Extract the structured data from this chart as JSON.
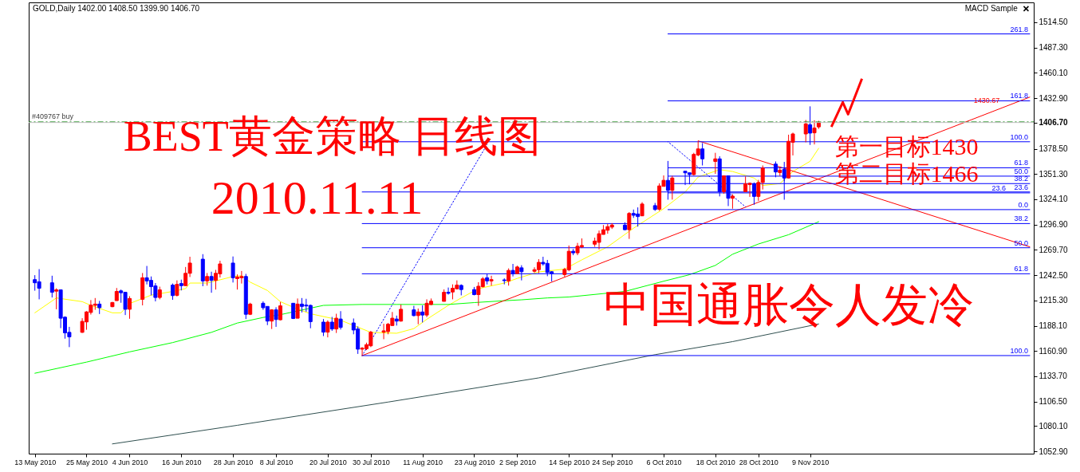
{
  "chart_data": {
    "type": "candlestick",
    "title": "BEST黄金策略 日线图",
    "subtitle": "2010.11.11",
    "annotations": [
      "GOLD,Daily 1402.00 1408.50 1399.90 1406.70",
      "MACD Sample",
      "第一目标1430",
      "第二目标1466",
      "中国通胀令人发冷",
      {
        "text": "1430.67",
        "x": "2010-12-20",
        "y": 1430.67
      }
    ],
    "x": [
      "2010-05-13",
      "2010-05-14",
      "2010-05-17",
      "2010-05-18",
      "2010-05-19",
      "2010-05-20",
      "2010-05-21",
      "2010-05-24",
      "2010-05-25",
      "2010-05-26",
      "2010-05-27",
      "2010-05-28",
      "2010-05-31",
      "2010-06-01",
      "2010-06-02",
      "2010-06-03",
      "2010-06-04",
      "2010-06-07",
      "2010-06-08",
      "2010-06-09",
      "2010-06-10",
      "2010-06-11",
      "2010-06-14",
      "2010-06-15",
      "2010-06-16",
      "2010-06-17",
      "2010-06-18",
      "2010-06-21",
      "2010-06-22",
      "2010-06-23",
      "2010-06-24",
      "2010-06-25",
      "2010-06-28",
      "2010-06-29",
      "2010-06-30",
      "2010-07-01",
      "2010-07-02",
      "2010-07-05",
      "2010-07-06",
      "2010-07-07",
      "2010-07-08",
      "2010-07-09",
      "2010-07-12",
      "2010-07-13",
      "2010-07-14",
      "2010-07-15",
      "2010-07-16",
      "2010-07-19",
      "2010-07-20",
      "2010-07-21",
      "2010-07-22",
      "2010-07-23",
      "2010-07-26",
      "2010-07-27",
      "2010-07-28",
      "2010-07-29",
      "2010-07-30",
      "2010-08-02",
      "2010-08-03",
      "2010-08-04",
      "2010-08-05",
      "2010-08-06",
      "2010-08-09",
      "2010-08-10",
      "2010-08-11",
      "2010-08-12",
      "2010-08-13",
      "2010-08-16",
      "2010-08-17",
      "2010-08-18",
      "2010-08-19",
      "2010-08-20",
      "2010-08-23",
      "2010-08-24",
      "2010-08-25",
      "2010-08-26",
      "2010-08-27",
      "2010-08-30",
      "2010-08-31",
      "2010-09-01",
      "2010-09-02",
      "2010-09-03",
      "2010-09-06",
      "2010-09-07",
      "2010-09-08",
      "2010-09-09",
      "2010-09-10",
      "2010-09-13",
      "2010-09-14",
      "2010-09-15",
      "2010-09-16",
      "2010-09-17",
      "2010-09-20",
      "2010-09-21",
      "2010-09-22",
      "2010-09-23",
      "2010-09-24",
      "2010-09-27",
      "2010-09-28",
      "2010-09-29",
      "2010-09-30",
      "2010-10-01",
      "2010-10-04",
      "2010-10-05",
      "2010-10-06",
      "2010-10-07",
      "2010-10-08",
      "2010-10-11",
      "2010-10-12",
      "2010-10-13",
      "2010-10-14",
      "2010-10-15",
      "2010-10-18",
      "2010-10-19",
      "2010-10-20",
      "2010-10-21",
      "2010-10-22",
      "2010-10-25",
      "2010-10-26",
      "2010-10-27",
      "2010-10-28",
      "2010-10-29",
      "2010-11-01",
      "2010-11-02",
      "2010-11-03",
      "2010-11-04",
      "2010-11-05",
      "2010-11-08",
      "2010-11-09",
      "2010-11-10",
      "2010-11-11"
    ],
    "ohlc": [
      [
        1237.7,
        1242.5,
        1225.8,
        1234.3
      ],
      [
        1235.4,
        1249.0,
        1216.5,
        1228.4
      ],
      [
        1234.3,
        1241.9,
        1218.5,
        1224.1
      ],
      [
        1225.3,
        1228.4,
        1205.8,
        1226.7
      ],
      [
        1226.7,
        1226.7,
        1185.5,
        1196.2
      ],
      [
        1197.3,
        1198.2,
        1174.2,
        1180.4
      ],
      [
        1181.0,
        1186.9,
        1165.1,
        1176.1
      ],
      [
        1181.0,
        1196.2,
        1180.4,
        1192.8
      ],
      [
        1192.2,
        1203.8,
        1183.8,
        1203.0
      ],
      [
        1202.4,
        1215.7,
        1200.1,
        1210.3
      ],
      [
        1210.0,
        1217.9,
        1205.2,
        1211.4
      ],
      [
        1211.4,
        1214.8,
        1200.7,
        1207.5
      ],
      [
        1208.6,
        1213.7,
        1208.0,
        1213.1
      ],
      [
        1215.1,
        1228.7,
        1215.1,
        1225.0
      ],
      [
        1225.6,
        1227.0,
        1212.8,
        1223.6
      ],
      [
        1224.1,
        1224.1,
        1199.6,
        1205.8
      ],
      [
        1205.8,
        1219.9,
        1195.6,
        1217.4
      ],
      [
        1216.5,
        1244.8,
        1210.0,
        1239.7
      ],
      [
        1239.7,
        1252.4,
        1232.6,
        1236.3
      ],
      [
        1236.9,
        1241.1,
        1220.8,
        1230.1
      ],
      [
        1230.9,
        1234.0,
        1214.3,
        1218.5
      ],
      [
        1218.5,
        1230.1,
        1216.5,
        1226.7
      ],
      [
        1231.8,
        1233.5,
        1216.0,
        1220.5
      ],
      [
        1220.8,
        1236.9,
        1219.6,
        1232.6
      ],
      [
        1233.5,
        1237.7,
        1226.1,
        1231.2
      ],
      [
        1231.2,
        1251.3,
        1231.2,
        1244.5
      ],
      [
        1244.5,
        1262.3,
        1240.5,
        1255.5
      ],
      [
        1259.7,
        1265.1,
        1230.6,
        1236.3
      ],
      [
        1236.3,
        1244.8,
        1231.2,
        1241.1
      ],
      [
        1241.1,
        1246.2,
        1223.6,
        1236.9
      ],
      [
        1236.9,
        1248.2,
        1227.0,
        1244.5
      ],
      [
        1243.9,
        1258.0,
        1240.0,
        1254.6
      ],
      [
        1255.5,
        1262.6,
        1234.6,
        1239.7
      ],
      [
        1238.8,
        1243.3,
        1227.0,
        1240.5
      ],
      [
        1239.7,
        1247.0,
        1233.5,
        1241.1
      ],
      [
        1241.1,
        1243.9,
        1195.3,
        1200.4
      ],
      [
        1200.4,
        1212.8,
        1199.6,
        1211.4
      ],
      [
        1212.3,
        1214.3,
        1205.2,
        1207.5
      ],
      [
        1208.9,
        1208.9,
        1188.8,
        1193.1
      ],
      [
        1193.1,
        1205.8,
        1184.6,
        1205.2
      ],
      [
        1205.2,
        1208.0,
        1186.9,
        1194.8
      ],
      [
        1194.5,
        1213.7,
        1193.9,
        1209.5
      ],
      [
        1212.3,
        1212.3,
        1195.3,
        1195.9
      ],
      [
        1196.2,
        1217.4,
        1196.2,
        1211.4
      ],
      [
        1211.4,
        1217.9,
        1202.4,
        1208.9
      ],
      [
        1210.3,
        1217.1,
        1203.2,
        1209.4
      ],
      [
        1210.0,
        1210.9,
        1185.4,
        1192.5
      ],
      [
        1192.0,
        1195.3,
        1177.0,
        1181.2
      ],
      [
        1181.2,
        1193.9,
        1175.6,
        1192.0
      ],
      [
        1192.0,
        1197.6,
        1182.6,
        1184.6
      ],
      [
        1184.6,
        1201.0,
        1180.3,
        1196.2
      ],
      [
        1195.3,
        1203.8,
        1184.0,
        1186.3
      ],
      [
        1191.1,
        1195.9,
        1178.9,
        1183.5
      ],
      [
        1184.6,
        1187.4,
        1157.8,
        1162.9
      ],
      [
        1162.9,
        1165.1,
        1155.8,
        1164.0
      ],
      [
        1163.4,
        1169.9,
        1162.0,
        1167.7
      ],
      [
        1166.5,
        1182.6,
        1165.1,
        1181.2
      ],
      [
        1181.2,
        1190.2,
        1173.6,
        1182.6
      ],
      [
        1181.8,
        1191.1,
        1178.9,
        1189.7
      ],
      [
        1188.3,
        1202.9,
        1188.3,
        1196.2
      ],
      [
        1195.3,
        1199.0,
        1188.3,
        1193.1
      ],
      [
        1193.1,
        1210.9,
        1192.5,
        1205.8
      ],
      [
        1205.2,
        1209.5,
        1198.2,
        1199.0
      ],
      [
        1199.0,
        1206.6,
        1189.7,
        1202.9
      ],
      [
        1202.9,
        1210.0,
        1191.7,
        1199.6
      ],
      [
        1199.6,
        1216.5,
        1197.3,
        1212.3
      ],
      [
        1210.9,
        1217.4,
        1210.3,
        1214.5
      ],
      [
        1214.3,
        1227.2,
        1214.3,
        1224.1
      ],
      [
        1224.1,
        1229.2,
        1221.6,
        1223.0
      ],
      [
        1224.4,
        1232.6,
        1216.5,
        1228.4
      ],
      [
        1227.8,
        1236.9,
        1227.2,
        1231.8
      ],
      [
        1231.5,
        1232.6,
        1220.8,
        1227.0
      ],
      [
        1227.0,
        1229.8,
        1220.8,
        1221.6
      ],
      [
        1221.6,
        1234.9,
        1209.5,
        1230.6
      ],
      [
        1230.1,
        1240.5,
        1229.2,
        1238.5
      ],
      [
        1239.7,
        1243.9,
        1232.6,
        1236.3
      ],
      [
        1236.3,
        1241.9,
        1231.2,
        1237.7
      ],
      [
        1237.4,
        1239.1,
        1232.6,
        1236.6
      ],
      [
        1236.3,
        1249.8,
        1231.2,
        1247.6
      ],
      [
        1247.6,
        1254.6,
        1241.1,
        1243.9
      ],
      [
        1244.2,
        1252.7,
        1243.9,
        1251.3
      ],
      [
        1250.4,
        1253.2,
        1236.9,
        1246.2
      ],
      [
        1246.7,
        1251.0,
        1245.3,
        1248.4
      ],
      [
        1248.4,
        1259.7,
        1244.7,
        1256.3
      ],
      [
        1256.3,
        1262.3,
        1252.7,
        1254.6
      ],
      [
        1255.2,
        1258.9,
        1241.4,
        1245.3
      ],
      [
        1246.2,
        1246.7,
        1235.7,
        1243.9
      ],
      [
        1243.1,
        1250.4,
        1240.5,
        1248.7
      ],
      [
        1248.3,
        1274.4,
        1246.7,
        1268.2
      ],
      [
        1268.2,
        1270.7,
        1264.0,
        1266.5
      ],
      [
        1266.5,
        1277.2,
        1264.0,
        1273.6
      ],
      [
        1273.0,
        1282.0,
        1271.6,
        1274.4
      ],
      [
        1275.8,
        1282.9,
        1273.0,
        1279.2
      ],
      [
        1277.8,
        1290.5,
        1270.2,
        1287.1
      ],
      [
        1286.3,
        1296.4,
        1286.3,
        1291.4
      ],
      [
        1290.8,
        1297.6,
        1287.1,
        1294.7
      ],
      [
        1294.2,
        1298.4,
        1292.2,
        1296.4
      ],
      [
        1296.4,
        1299.3,
        1290.8,
        1291.4
      ],
      [
        1291.4,
        1310.3,
        1281.5,
        1308.9
      ],
      [
        1308.9,
        1313.1,
        1304.1,
        1306.9
      ],
      [
        1308.3,
        1315.4,
        1294.7,
        1305.5
      ],
      [
        1306.3,
        1321.0,
        1306.3,
        1319.0
      ],
      [
        1317.3,
        1320.2,
        1311.7,
        1313.1
      ],
      [
        1313.4,
        1341.3,
        1311.7,
        1338.5
      ],
      [
        1338.0,
        1349.8,
        1338.0,
        1344.5
      ],
      [
        1344.5,
        1347.3,
        1332.3,
        1333.7
      ],
      [
        1333.7,
        1349.3,
        1323.8,
        1347.0
      ],
      [
        1354.3,
        1354.3,
        1339.4,
        1352.6
      ],
      [
        1352.6,
        1352.6,
        1340.2,
        1350.7
      ],
      [
        1350.7,
        1374.1,
        1349.8,
        1372.4
      ],
      [
        1371.8,
        1386.5,
        1370.4,
        1378.3
      ],
      [
        1378.3,
        1384.6,
        1360.5,
        1367.6
      ],
      [
        1364.8,
        1374.1,
        1351.5,
        1367.6
      ],
      [
        1367.6,
        1370.4,
        1327.2,
        1332.3
      ],
      [
        1332.3,
        1349.8,
        1330.0,
        1349.3
      ],
      [
        1349.3,
        1349.8,
        1316.8,
        1325.2
      ],
      [
        1325.2,
        1329.5,
        1314.0,
        1327.5
      ],
      [
        1332.3,
        1348.7,
        1332.3,
        1340.8
      ],
      [
        1339.9,
        1342.2,
        1326.7,
        1341.3
      ],
      [
        1340.8,
        1342.2,
        1318.2,
        1327.2
      ],
      [
        1327.2,
        1345.0,
        1322.4,
        1342.2
      ],
      [
        1342.2,
        1360.5,
        1334.6,
        1357.7
      ],
      [
        1362.0,
        1364.8,
        1347.8,
        1353.5
      ],
      [
        1352.9,
        1359.1,
        1349.3,
        1355.5
      ],
      [
        1356.3,
        1358.3,
        1343.6,
        1347.0
      ],
      [
        1347.0,
        1393.6,
        1346.4,
        1386.5
      ],
      [
        1385.4,
        1395.8,
        1371.3,
        1394.4
      ],
      [
        1394.4,
        1409.4,
        1385.4,
        1405.2
      ],
      [
        1404.3,
        1424.1,
        1382.6,
        1395.3
      ],
      [
        1395.6,
        1409.1,
        1383.1,
        1400.7
      ],
      [
        1402.0,
        1408.5,
        1399.9,
        1406.7
      ]
    ],
    "colors": [
      "#0000ff",
      "#0000ff",
      "#0000ff",
      "#ff0000",
      "#0000ff",
      "#0000ff",
      "#0000ff",
      "#ff0000",
      "#ff0000",
      "#ff0000",
      "#ff0000",
      "#0000ff",
      "#ff0000",
      "#ff0000",
      "#0000ff",
      "#0000ff",
      "#ff0000",
      "#ff0000",
      "#0000ff",
      "#0000ff",
      "#0000ff",
      "#ff0000",
      "#0000ff",
      "#ff0000",
      "#0000ff",
      "#ff0000",
      "#ff0000",
      "#0000ff",
      "#ff0000",
      "#0000ff",
      "#ff0000",
      "#ff0000",
      "#0000ff",
      "#ff0000",
      "#ff0000",
      "#0000ff",
      "#ff0000",
      "#0000ff",
      "#0000ff",
      "#ff0000",
      "#0000ff",
      "#ff0000",
      "#0000ff",
      "#ff0000",
      "#0000ff",
      "#0000ff",
      "#0000ff",
      "#0000ff",
      "#ff0000",
      "#0000ff",
      "#ff0000",
      "#0000ff",
      "#0000ff",
      "#0000ff",
      "#ff0000",
      "#ff0000",
      "#ff0000",
      "#ff0000",
      "#ff0000",
      "#ff0000",
      "#0000ff",
      "#ff0000",
      "#0000ff",
      "#ff0000",
      "#0000ff",
      "#ff0000",
      "#ff0000",
      "#ff0000",
      "#0000ff",
      "#ff0000",
      "#ff0000",
      "#0000ff",
      "#0000ff",
      "#ff0000",
      "#ff0000",
      "#0000ff",
      "#ff0000",
      "#0000ff",
      "#ff0000",
      "#0000ff",
      "#ff0000",
      "#0000ff",
      "#ff0000",
      "#ff0000",
      "#0000ff",
      "#0000ff",
      "#0000ff",
      "#ff0000",
      "#ff0000",
      "#0000ff",
      "#ff0000",
      "#ff0000",
      "#ff0000",
      "#ff0000",
      "#ff0000",
      "#ff0000",
      "#ff0000",
      "#0000ff",
      "#ff0000",
      "#0000ff",
      "#0000ff",
      "#ff0000",
      "#0000ff",
      "#ff0000",
      "#ff0000",
      "#0000ff",
      "#ff0000",
      "#0000ff",
      "#0000ff",
      "#ff0000",
      "#ff0000",
      "#0000ff",
      "#ff0000",
      "#0000ff",
      "#ff0000",
      "#0000ff",
      "#ff0000",
      "#ff0000",
      "#ff0000",
      "#0000ff",
      "#ff0000",
      "#ff0000",
      "#0000ff",
      "#ff0000",
      "#0000ff",
      "#ff0000",
      "#ff0000",
      "#ff0000",
      "#0000ff",
      "#ff0000",
      "#ff0000"
    ],
    "series": [
      {
        "type": "line",
        "color": "#ffff00",
        "x": [
          "2010-05-13",
          "2010-05-18",
          "2010-05-24",
          "2010-05-26",
          "2010-05-31",
          "2010-06-02",
          "2010-06-04",
          "2010-06-09",
          "2010-06-14",
          "2010-06-17",
          "2010-06-18",
          "2010-06-22",
          "2010-06-28",
          "2010-06-30",
          "2010-07-02",
          "2010-07-06",
          "2010-07-09",
          "2010-07-13",
          "2010-07-16",
          "2010-07-23",
          "2010-07-30",
          "2010-08-05",
          "2010-08-09",
          "2010-08-12",
          "2010-08-17",
          "2010-08-20",
          "2010-08-24",
          "2010-08-30",
          "2010-09-02",
          "2010-09-07",
          "2010-09-13",
          "2010-09-17",
          "2010-09-23",
          "2010-09-29",
          "2010-10-06",
          "2010-10-11",
          "2010-10-14",
          "2010-10-19",
          "2010-10-22",
          "2010-10-27",
          "2010-10-29",
          "2010-11-02",
          "2010-11-05",
          "2010-11-09",
          "2010-11-11"
        ],
        "values": [
          1202,
          1218,
          1214,
          1210,
          1202,
          1202,
          1212,
          1221,
          1225,
          1228,
          1234,
          1234,
          1241,
          1242,
          1235,
          1226,
          1214,
          1206,
          1201,
          1194,
          1181,
          1180,
          1185,
          1195,
          1210,
          1218,
          1228,
          1234,
          1239,
          1246,
          1249,
          1259,
          1273,
          1293,
          1314,
          1332,
          1348,
          1356,
          1354,
          1347,
          1339,
          1341,
          1354,
          1365,
          1379
        ]
      },
      {
        "type": "line",
        "color": "#00ff00",
        "x": [
          "2010-05-13",
          "2010-05-25",
          "2010-06-04",
          "2010-06-14",
          "2010-06-23",
          "2010-06-29",
          "2010-07-05",
          "2010-07-09",
          "2010-07-14",
          "2010-07-19",
          "2010-07-28",
          "2010-08-05",
          "2010-08-11",
          "2010-08-17",
          "2010-08-23",
          "2010-08-30",
          "2010-09-03",
          "2010-09-09",
          "2010-09-14",
          "2010-09-27",
          "2010-10-06",
          "2010-10-12",
          "2010-10-18",
          "2010-10-22",
          "2010-10-28",
          "2010-11-04",
          "2010-11-11"
        ],
        "values": [
          1137,
          1149,
          1160,
          1170,
          1181,
          1191,
          1197,
          1200,
          1205,
          1210,
          1211,
          1211,
          1211,
          1211,
          1213,
          1215,
          1216,
          1218,
          1219,
          1225,
          1236,
          1243,
          1253,
          1265,
          1276,
          1286,
          1300
        ]
      },
      {
        "type": "line",
        "color": "#2f4f4f",
        "x": [
          "2010-05-31",
          "2010-06-29",
          "2010-08-03",
          "2010-09-07",
          "2010-10-04",
          "2010-10-22",
          "2010-11-11"
        ],
        "values": [
          1061,
          1081,
          1106,
          1132,
          1157,
          1171,
          1190
        ]
      },
      {
        "type": "line",
        "color": "#ff0000",
        "x": [
          "2010-07-28",
          "2010-12-30"
        ],
        "values": [
          1156,
          1434
        ]
      },
      {
        "type": "line",
        "color": "#ff0000",
        "x": [
          "2010-10-14",
          "2010-12-30"
        ],
        "values": [
          1387,
          1273
        ]
      },
      {
        "type": "line",
        "color": "#0000ff",
        "line_style": "dotted",
        "x": [
          "2010-07-28",
          "2010-08-26"
        ],
        "values": [
          1156,
          1383
        ]
      },
      {
        "type": "line",
        "color": "#0000ff",
        "line_style": "dotted",
        "x": [
          "2010-10-07",
          "2010-10-25"
        ],
        "values": [
          1386,
          1316
        ]
      },
      {
        "type": "line",
        "color": "#0000ff",
        "x": [
          "2010-10-07",
          "2010-10-07"
        ],
        "values": [
          1365,
          1324
        ]
      },
      {
        "type": "line",
        "color": "#0000ff",
        "x": [
          "2010-11-03",
          "2010-11-03"
        ],
        "values": [
          1364,
          1324
        ]
      },
      {
        "type": "line",
        "name": "261.8",
        "color": "#0000ff",
        "x": [
          "2010-10-07",
          "2010-12-30"
        ],
        "values": [
          1502,
          1502
        ]
      },
      {
        "type": "line",
        "name": "161.8",
        "color": "#0000ff",
        "x": [
          "2010-10-07",
          "2010-12-30"
        ],
        "values": [
          1430,
          1430
        ]
      },
      {
        "type": "line",
        "name": "100.0",
        "color": "#0000ff",
        "x": [
          "2010-07-28",
          "2010-12-30"
        ],
        "values": [
          1386,
          1386
        ]
      },
      {
        "type": "line",
        "name": "61.8",
        "color": "#0000ff",
        "x": [
          "2010-10-07",
          "2010-12-30"
        ],
        "values": [
          1358,
          1358
        ]
      },
      {
        "type": "line",
        "name": "50.0",
        "color": "#0000ff",
        "x": [
          "2010-10-07",
          "2010-12-30"
        ],
        "values": [
          1349,
          1349
        ]
      },
      {
        "type": "line",
        "name": "38.2",
        "color": "#0000ff",
        "x": [
          "2010-10-07",
          "2010-12-30"
        ],
        "values": [
          1341,
          1341
        ]
      },
      {
        "type": "line",
        "name": "23.6",
        "color": "#0000ff",
        "x": [
          "2010-07-28",
          "2010-12-30"
        ],
        "values": [
          1332,
          1332
        ]
      },
      {
        "type": "line",
        "name": "23.6",
        "color": "#0000ff",
        "x": [
          "2010-10-07",
          "2010-12-30"
        ],
        "values": [
          1331,
          1331
        ]
      },
      {
        "type": "line",
        "name": "0.0",
        "color": "#0000ff",
        "x": [
          "2010-10-07",
          "2010-12-30"
        ],
        "values": [
          1313,
          1313
        ]
      },
      {
        "type": "line",
        "name": "38.2",
        "color": "#0000ff",
        "x": [
          "2010-07-28",
          "2010-12-30"
        ],
        "values": [
          1298,
          1298
        ]
      },
      {
        "type": "line",
        "name": "50.0",
        "color": "#0000ff",
        "x": [
          "2010-07-28",
          "2010-12-30"
        ],
        "values": [
          1272,
          1272
        ]
      },
      {
        "type": "line",
        "name": "61.8",
        "color": "#0000ff",
        "x": [
          "2010-07-28",
          "2010-12-30"
        ],
        "values": [
          1244,
          1244
        ]
      },
      {
        "type": "line",
        "name": "100.0",
        "color": "#0000ff",
        "x": [
          "2010-07-28",
          "2010-12-30"
        ],
        "values": [
          1156,
          1156
        ]
      }
    ],
    "ref_lines": [
      {
        "axis": "y",
        "value": 1407.3,
        "label": "#409767 buy",
        "color": "#008000",
        "line_style": "dashed"
      },
      {
        "axis": "y",
        "value": 1406.7,
        "color": "#c0c0c0"
      }
    ],
    "xlim": [
      "2010-05-12T12:00",
      "2010-12-30"
    ],
    "xticks": [
      {
        "value": "2010-05-13",
        "label": "13 May 2010"
      },
      {
        "value": "2010-05-25",
        "label": "25 May 2010"
      },
      {
        "value": "2010-06-04",
        "label": "4 Jun 2010"
      },
      {
        "value": "2010-06-16",
        "label": "16 Jun 2010"
      },
      {
        "value": "2010-06-28",
        "label": "28 Jun 2010"
      },
      {
        "value": "2010-07-08",
        "label": "8 Jul 2010"
      },
      {
        "value": "2010-07-20",
        "label": "20 Jul 2010"
      },
      {
        "value": "2010-07-30",
        "label": "30 Jul 2010"
      },
      {
        "value": "2010-08-11",
        "label": "11 Aug 2010"
      },
      {
        "value": "2010-08-23",
        "label": "23 Aug 2010"
      },
      {
        "value": "2010-09-02",
        "label": "2 Sep 2010"
      },
      {
        "value": "2010-09-14",
        "label": "14 Sep 2010"
      },
      {
        "value": "2010-09-24",
        "label": "24 Sep 2010"
      },
      {
        "value": "2010-10-06",
        "label": "6 Oct 2010"
      },
      {
        "value": "2010-10-18",
        "label": "18 Oct 2010"
      },
      {
        "value": "2010-10-28",
        "label": "28 Oct 2010"
      },
      {
        "value": "2010-11-09",
        "label": "9 Nov 2010"
      }
    ],
    "ylim": [
      1050.5,
      1535.9
    ],
    "yticks": [
      {
        "value": 1514.5,
        "label": "1514.50"
      },
      {
        "value": 1487.3,
        "label": "1487.30"
      },
      {
        "value": 1460.1,
        "label": "1460.10"
      },
      {
        "value": 1432.9,
        "label": "1432.90"
      },
      {
        "value": 1406.7,
        "label": "1406.70"
      },
      {
        "value": 1378.5,
        "label": "1378.50"
      },
      {
        "value": 1351.3,
        "label": "1351.30"
      },
      {
        "value": 1324.1,
        "label": "1324.10"
      },
      {
        "value": 1296.9,
        "label": "1296.90"
      },
      {
        "value": 1269.7,
        "label": "1269.70"
      },
      {
        "value": 1242.5,
        "label": "1242.50"
      },
      {
        "value": 1215.3,
        "label": "1215.30"
      },
      {
        "value": 1188.1,
        "label": "1188.10"
      },
      {
        "value": 1160.9,
        "label": "1160.90"
      },
      {
        "value": 1133.7,
        "label": "1133.70"
      },
      {
        "value": 1106.5,
        "label": "1106.50"
      },
      {
        "value": 1080.1,
        "label": "1080.10"
      },
      {
        "value": 1052.9,
        "label": "1052.90"
      }
    ]
  }
}
